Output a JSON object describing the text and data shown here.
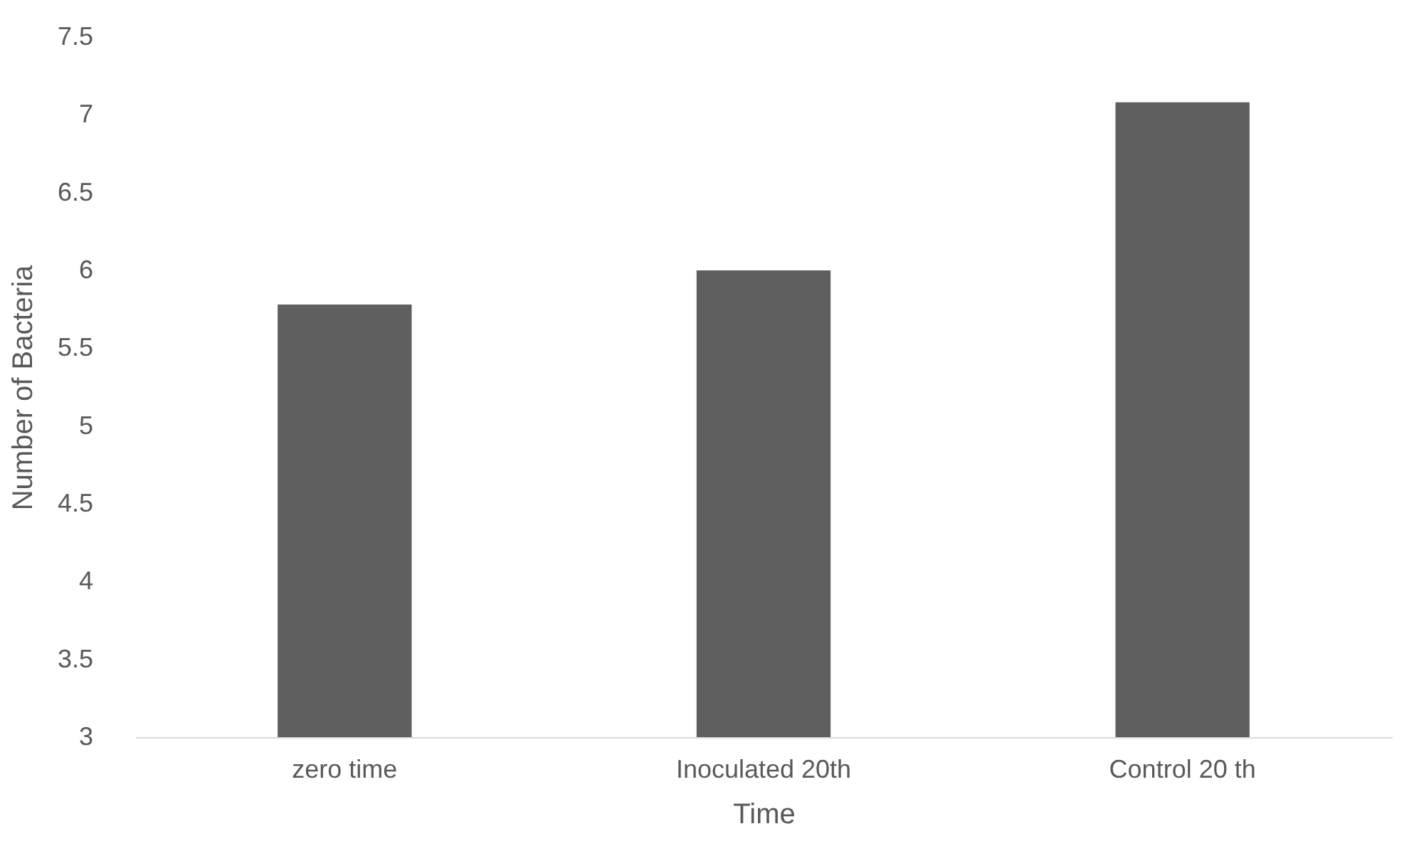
{
  "chart_data": {
    "type": "bar",
    "xlabel": "Time",
    "ylabel": "Number of Bacteria",
    "categories": [
      "zero time",
      "Inoculated 20th",
      "Control 20 th"
    ],
    "values": [
      5.78,
      6.0,
      7.08
    ],
    "color": "#5f5f5f",
    "ylim": [
      3,
      7.5
    ],
    "yticks": [
      3,
      3.5,
      4,
      4.5,
      5,
      5.5,
      6,
      6.5,
      7,
      7.5
    ],
    "grid": false
  }
}
